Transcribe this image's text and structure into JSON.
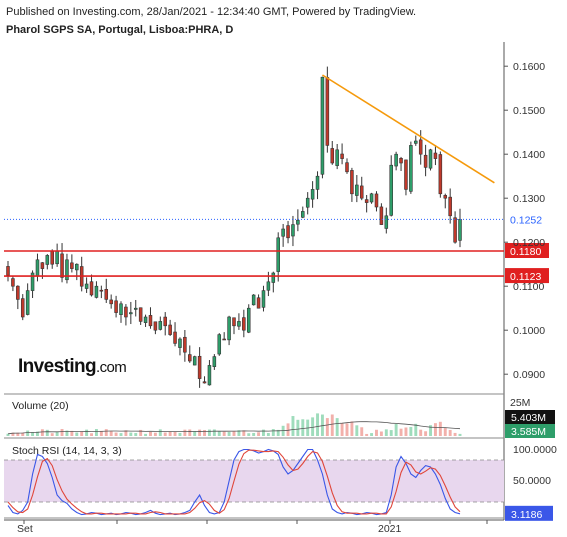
{
  "header": {
    "published": "Published on Investing.com, 28/Jan/2021 - 12:34:40 GMT, Powered by TradingView.",
    "symbol": "Pharol SGPS SA, Portugal, Lisboa:PHRA, D"
  },
  "logo": {
    "name": "Investing",
    "suffix": ".com"
  },
  "colors": {
    "up": "#2e9e6a",
    "down": "#c0392b",
    "vol_up": "#9fdcbc",
    "vol_down": "#f2b0ab",
    "trendline": "#f59a0c",
    "support": "#e02020",
    "last": "#2962ff",
    "rsi_k": "#3a57e8",
    "rsi_d": "#e0463a",
    "rsi_band": "#e8d7ee"
  },
  "chart_data": [
    {
      "type": "candlestick",
      "title": "Pharol SGPS SA, Portugal, Lisboa:PHRA, D",
      "x_ticks": [
        "Set",
        "2021"
      ],
      "y_ticks": [
        0.09,
        0.1,
        0.11,
        0.12,
        0.13,
        0.14,
        0.15,
        0.16
      ],
      "y_tick_labels": [
        "0.0900",
        "0.1000",
        "0.1100",
        "0.1200",
        "0.1300",
        "0.1400",
        "0.1500",
        "0.1600"
      ],
      "ylim": [
        0.0855,
        0.1655
      ],
      "closes": [
        0.1125,
        0.11,
        0.107,
        0.103,
        0.109,
        0.113,
        0.116,
        0.114,
        0.117,
        0.115,
        0.118,
        0.112,
        0.116,
        0.114,
        0.115,
        0.11,
        0.1105,
        0.108,
        0.11,
        0.109,
        0.107,
        0.106,
        0.104,
        0.106,
        0.103,
        0.104,
        0.105,
        0.102,
        0.103,
        0.101,
        0.1,
        0.102,
        0.101,
        0.099,
        0.097,
        0.098,
        0.095,
        0.093,
        0.094,
        0.089,
        0.088,
        0.092,
        0.094,
        0.099,
        0.098,
        0.103,
        0.101,
        0.102,
        0.1,
        0.105,
        0.108,
        0.105,
        0.109,
        0.111,
        0.113,
        0.121,
        0.123,
        0.121,
        0.124,
        0.125,
        0.127,
        0.13,
        0.132,
        0.135,
        0.1575,
        0.142,
        0.138,
        0.141,
        0.139,
        0.136,
        0.131,
        0.133,
        0.13,
        0.129,
        0.131,
        0.128,
        0.124,
        0.126,
        0.1375,
        0.14,
        0.138,
        0.132,
        0.142,
        0.143,
        0.14,
        0.137,
        0.141,
        0.139,
        0.131,
        0.13,
        0.126,
        0.12,
        0.1252
      ],
      "last_price": "0.1252",
      "levels": [
        {
          "value": 0.118,
          "label": "0.1180"
        },
        {
          "value": 0.1123,
          "label": "0.1123"
        }
      ],
      "trendline": {
        "start": {
          "index": 64,
          "value": 0.158
        },
        "end": {
          "index": 99,
          "value": 0.1335
        }
      }
    },
    {
      "type": "bar",
      "title": "Volume (20)",
      "y_ticks": [
        "25M"
      ],
      "last_value_up": "5.403M",
      "ma_value": "3.585M",
      "peak_index": 63
    },
    {
      "type": "line",
      "title": "Stoch RSI (14, 14, 3, 3)",
      "y_ticks": [
        "100.0000",
        "50.0000"
      ],
      "band": [
        20,
        80
      ],
      "last_value": "3.1186",
      "series": [
        {
          "name": "%K",
          "values": [
            15,
            5,
            3,
            8,
            20,
            60,
            88,
            85,
            75,
            55,
            30,
            22,
            18,
            10,
            5,
            2,
            3,
            5,
            4,
            2,
            3,
            4,
            2,
            3,
            5,
            4,
            2,
            3,
            5,
            8,
            4,
            2,
            3,
            4,
            2,
            3,
            5,
            8,
            20,
            30,
            15,
            5,
            3,
            5,
            20,
            50,
            80,
            92,
            95,
            95,
            93,
            90,
            92,
            95,
            93,
            88,
            70,
            60,
            65,
            75,
            85,
            95,
            95,
            80,
            60,
            30,
            10,
            5,
            3,
            5,
            4,
            2,
            3,
            5,
            4,
            2,
            3,
            5,
            30,
            70,
            85,
            75,
            60,
            55,
            65,
            72,
            70,
            60,
            45,
            25,
            10,
            5,
            3.1
          ]
        },
        {
          "name": "%D",
          "values": [
            20,
            12,
            6,
            5,
            10,
            30,
            56,
            78,
            82,
            72,
            52,
            36,
            24,
            17,
            11,
            6,
            3,
            3,
            4,
            4,
            3,
            3,
            3,
            3,
            3,
            4,
            4,
            3,
            3,
            5,
            6,
            5,
            3,
            3,
            3,
            3,
            3,
            5,
            11,
            19,
            22,
            17,
            8,
            4,
            9,
            25,
            50,
            74,
            89,
            94,
            94,
            93,
            92,
            92,
            93,
            92,
            84,
            73,
            65,
            67,
            75,
            85,
            92,
            90,
            78,
            57,
            33,
            15,
            6,
            4,
            4,
            4,
            3,
            3,
            4,
            4,
            3,
            3,
            13,
            35,
            62,
            77,
            73,
            63,
            60,
            64,
            69,
            67,
            58,
            43,
            27,
            13,
            6.1
          ]
        }
      ]
    }
  ]
}
